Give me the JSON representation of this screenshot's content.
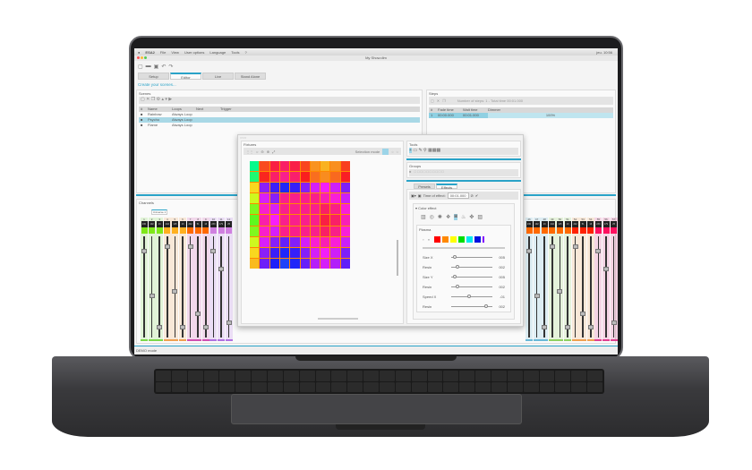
{
  "menubar": {
    "app": "ESA2",
    "items": [
      "File",
      "View",
      "User options",
      "Language",
      "Tools",
      "?"
    ],
    "clock": "jeu. 10:56"
  },
  "window": {
    "title": "My Show.dlm"
  },
  "tabs": [
    {
      "label": "Setup"
    },
    {
      "label": "Editor",
      "active": true
    },
    {
      "label": "Live"
    },
    {
      "label": "Stand Alone"
    }
  ],
  "hint": "Create your scenes...",
  "scenes": {
    "title": "Scenes",
    "columns": [
      "#",
      "Name",
      "Loops",
      "Next",
      "Trigger"
    ],
    "rows": [
      {
        "name": "Rainbow",
        "loops": "Always Loop"
      },
      {
        "name": "Psycho",
        "loops": "Always Loop",
        "selected": true
      },
      {
        "name": "Flame",
        "loops": "Always Loop"
      }
    ]
  },
  "steps": {
    "title": "Steps",
    "summary": "Number of steps: 1 - Total time 00:01.000",
    "columns": [
      "#",
      "Fade time",
      "Wait time",
      "Dimmer"
    ],
    "rows": [
      {
        "n": "1",
        "fade": "00:00.000",
        "wait": "00:01.000",
        "dimmer": "100%"
      }
    ]
  },
  "channels": {
    "title": "Channels",
    "universe_tab": "Universe 1",
    "left_groups": [
      "#7fe81a",
      "#ffb020",
      "#ff6a00",
      "#d080e0"
    ],
    "right_groups": [
      "#ff6a00",
      "#ff6a00",
      "#ff2000",
      "#ff1060"
    ],
    "left_bottom": [
      "#7cd84a",
      "#f0a050",
      "#d050b0",
      "#b070e0"
    ],
    "right_bottom": [
      "#6ab8d8",
      "#90d060",
      "#f0a050",
      "#e04090"
    ]
  },
  "fixtures": {
    "title": "Fixtures",
    "selection_mode": "Selection mode"
  },
  "tools": {
    "title": "Tools"
  },
  "groups": {
    "title": "Groups"
  },
  "effect_tabs": [
    {
      "label": "Presets"
    },
    {
      "label": "Effects",
      "active": true
    }
  ],
  "effect": {
    "time_label": "Time of effect:",
    "time_value": "00:01.000",
    "section": "Color effect",
    "plasma": "Plasma",
    "palette": [
      "#ff0000",
      "#ff8800",
      "#ffff00",
      "#00dd00",
      "#00e8f0",
      "#0010e0",
      "#8000ff"
    ],
    "sliders": [
      {
        "label": "Size X",
        "value": "005",
        "level": 0.05
      },
      {
        "label": "Resin",
        "value": "002",
        "level": 0.1
      },
      {
        "label": "Size Y",
        "value": "005",
        "level": 0.05
      },
      {
        "label": "Resin",
        "value": "002",
        "level": 0.1
      },
      {
        "label": "Speed X",
        "value": "-01",
        "level": 0.4
      },
      {
        "label": "Resin",
        "value": "002",
        "level": 0.8
      }
    ]
  },
  "status": "DEMO mode"
}
